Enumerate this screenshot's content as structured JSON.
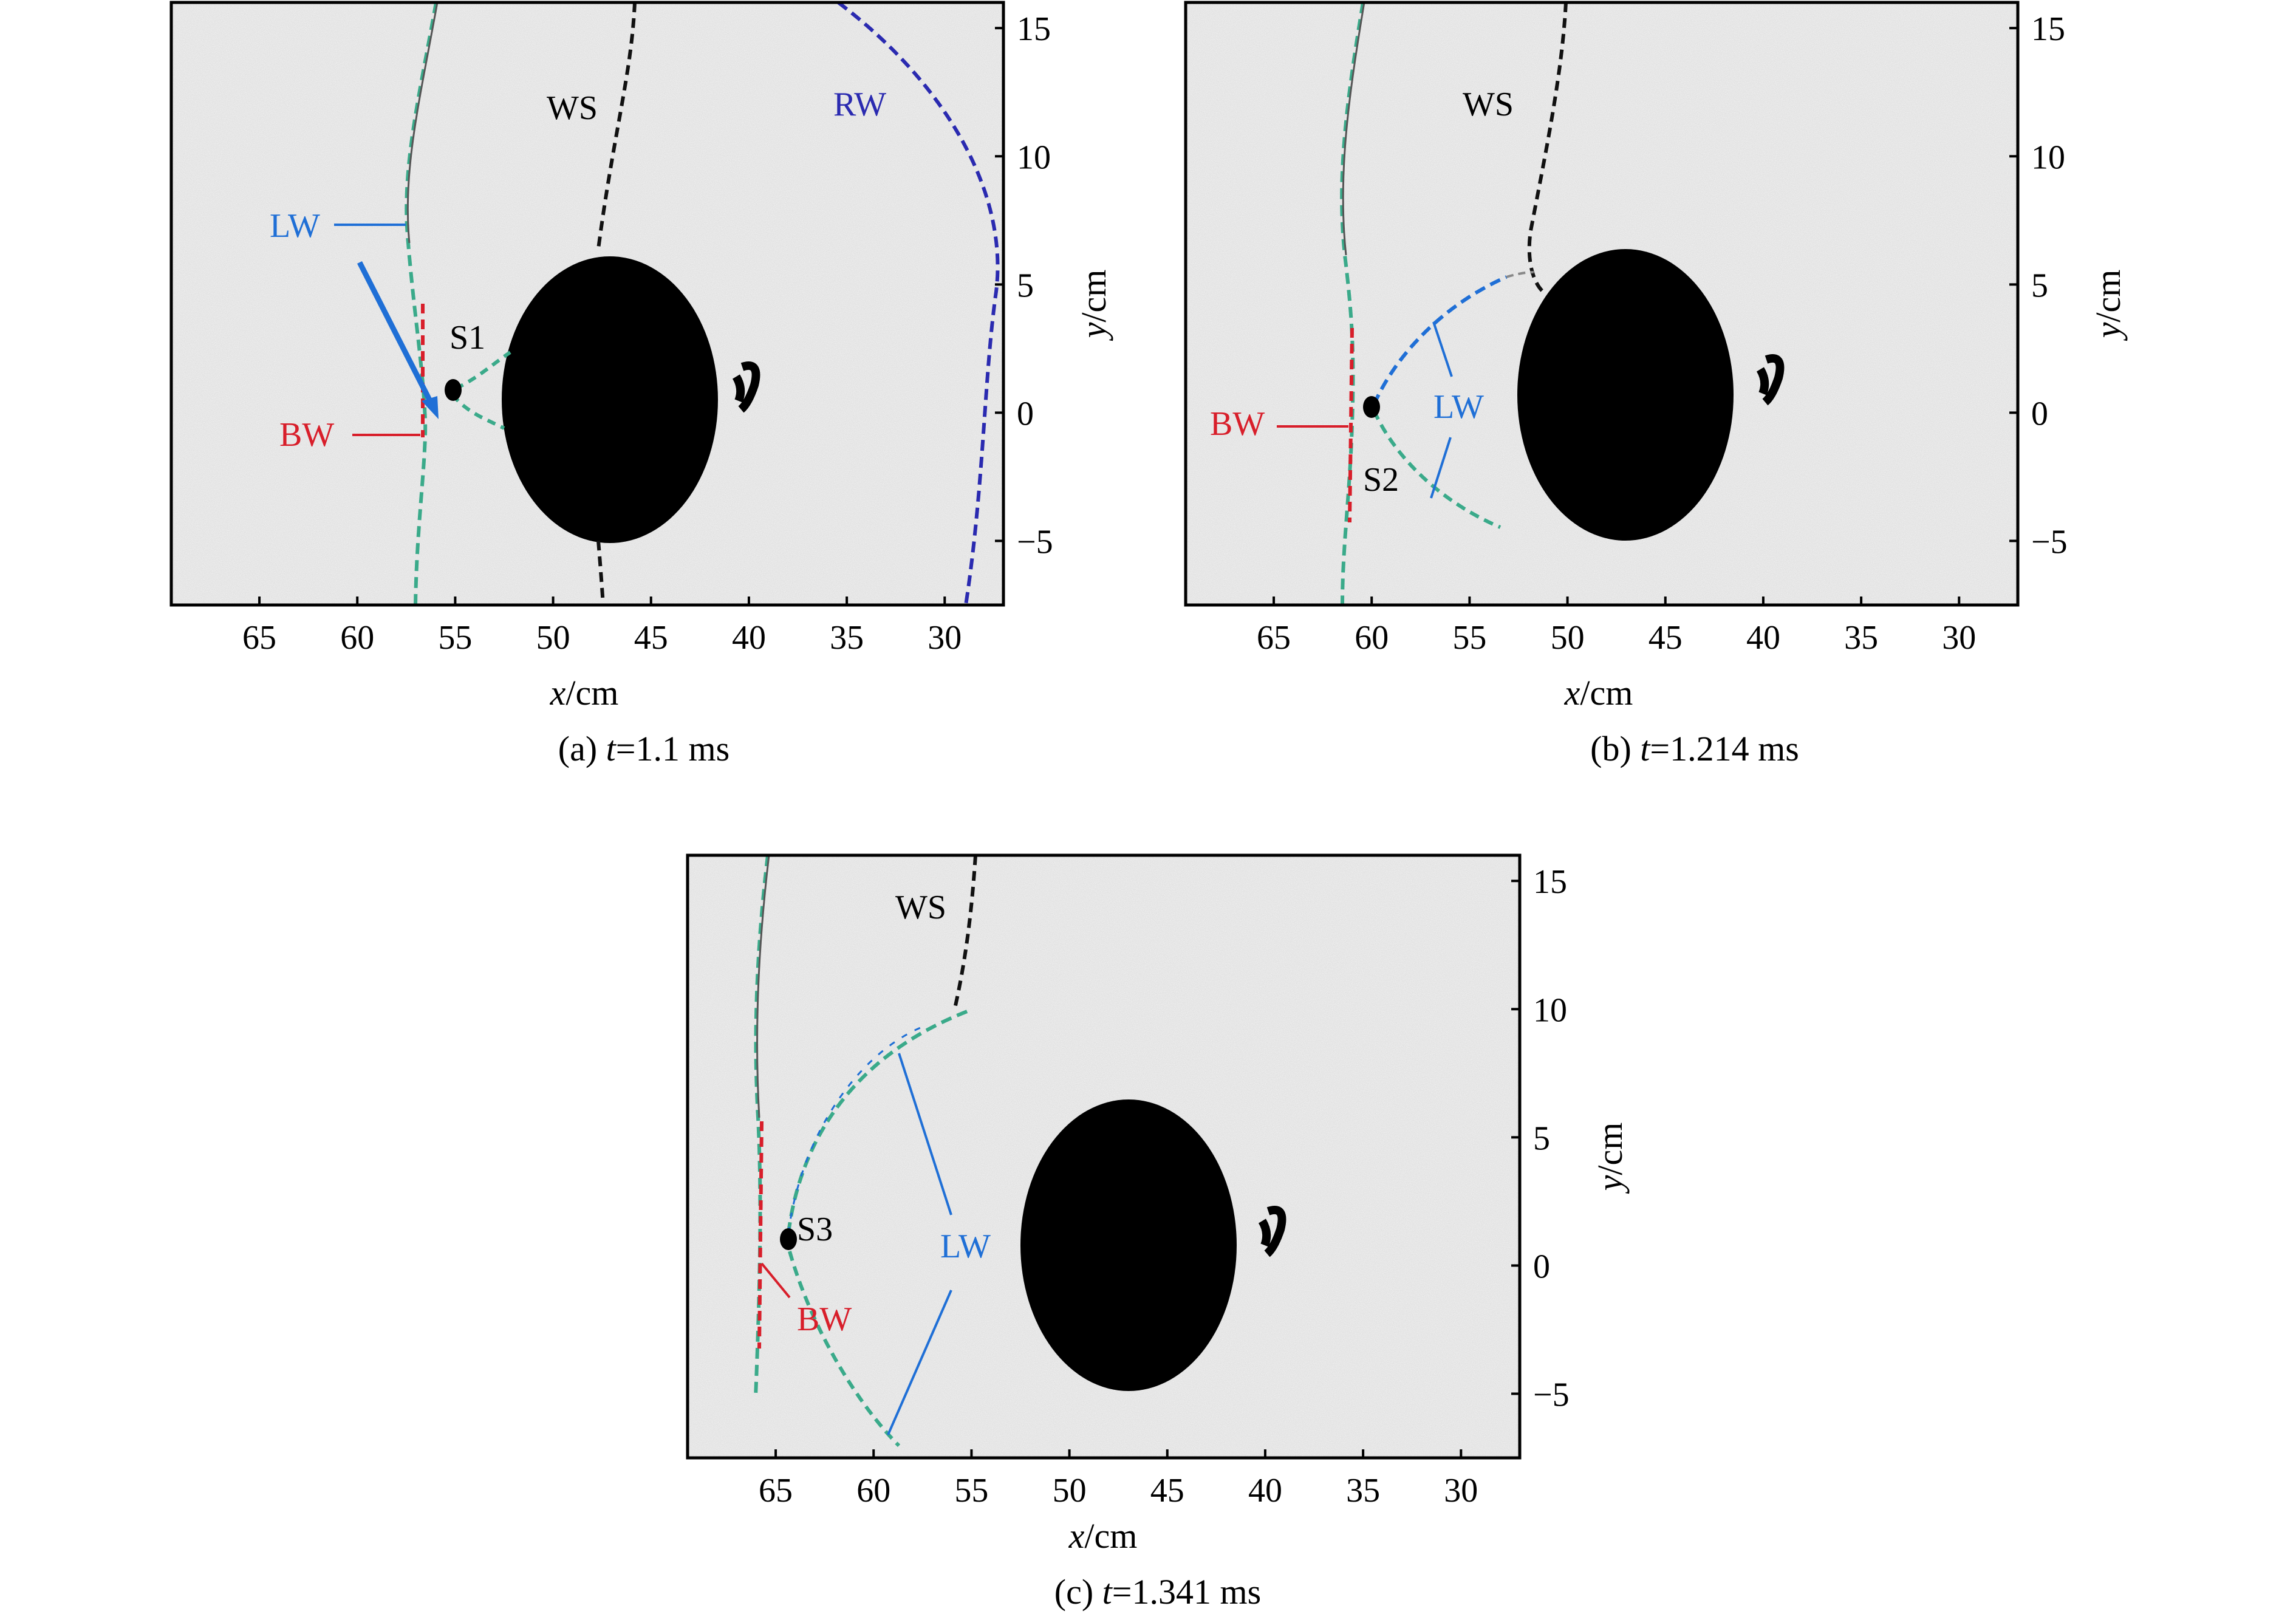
{
  "colors": {
    "background": "#e2e2e2",
    "body": "#000000",
    "lw": "#1f6fd6",
    "bw": "#d81e2a",
    "rw": "#2a2ab0",
    "ws": "#111111",
    "dash_teal": "#3aaa8a"
  },
  "panels": [
    {
      "id": "a",
      "caption_prefix": "(a) ",
      "caption_var": "t",
      "caption_value": "=1.1 ms",
      "xlabel_var": "x",
      "xlabel_unit": "/cm",
      "ylabel_var": "y",
      "ylabel_unit": "/cm",
      "xlim": [
        69.5,
        27
      ],
      "ylim": [
        -7.5,
        16
      ],
      "xticks": [
        "65",
        "60",
        "55",
        "50",
        "45",
        "40",
        "35",
        "30"
      ],
      "yticks": [
        "15",
        "10",
        "5",
        "0",
        "−5"
      ],
      "labels": {
        "ws": "WS",
        "rw": "RW",
        "lw": "LW",
        "bw": "BW",
        "s": "S1"
      }
    },
    {
      "id": "b",
      "caption_prefix": "(b) ",
      "caption_var": "t",
      "caption_value": "=1.214 ms",
      "xlabel_var": "x",
      "xlabel_unit": "/cm",
      "ylabel_var": "y",
      "ylabel_unit": "/cm",
      "xlim": [
        69.5,
        27
      ],
      "ylim": [
        -7.5,
        16
      ],
      "xticks": [
        "65",
        "60",
        "55",
        "50",
        "45",
        "40",
        "35",
        "30"
      ],
      "yticks": [
        "15",
        "10",
        "5",
        "0",
        "−5"
      ],
      "labels": {
        "ws": "WS",
        "lw": "LW",
        "bw": "BW",
        "s": "S2"
      }
    },
    {
      "id": "c",
      "caption_prefix": "(c) ",
      "caption_var": "t",
      "caption_value": "=1.341 ms",
      "xlabel_var": "x",
      "xlabel_unit": "/cm",
      "ylabel_var": "y",
      "ylabel_unit": "/cm",
      "xlim": [
        69.5,
        27
      ],
      "ylim": [
        -7.5,
        16
      ],
      "xticks": [
        "65",
        "60",
        "55",
        "50",
        "45",
        "40",
        "35",
        "30"
      ],
      "yticks": [
        "15",
        "10",
        "5",
        "0",
        "−5"
      ],
      "labels": {
        "ws": "WS",
        "lw": "LW",
        "bw": "BW",
        "s": "S3"
      }
    }
  ]
}
